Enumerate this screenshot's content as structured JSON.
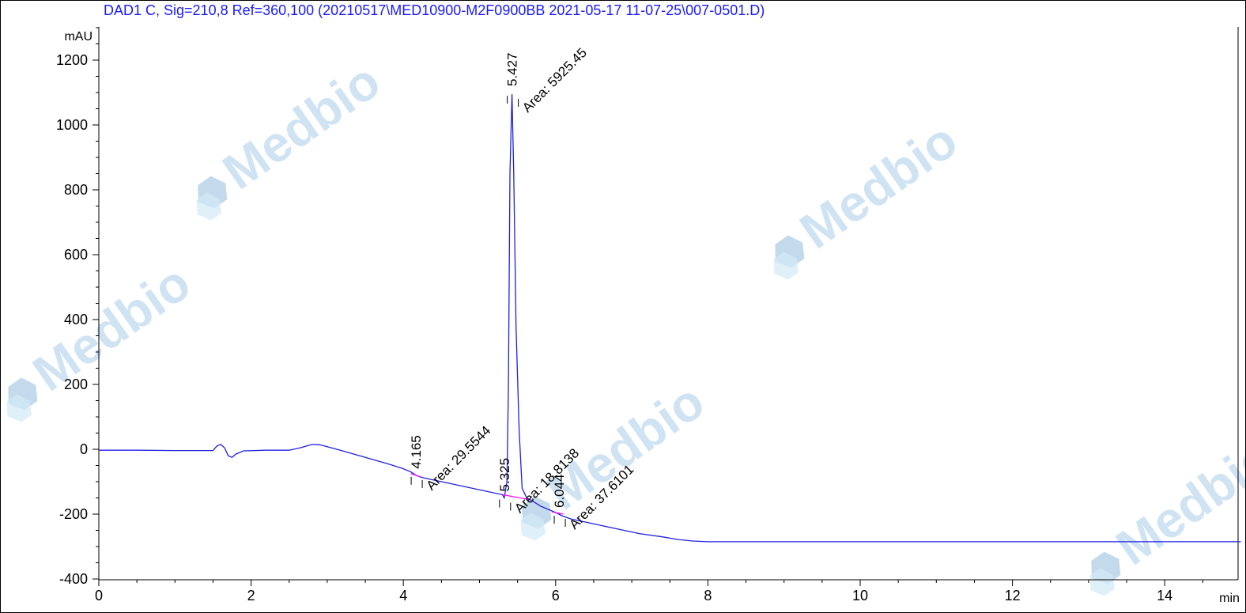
{
  "chart_data": {
    "type": "line",
    "title": "DAD1 C, Sig=210,8 Ref=360,100 (20210517\\MED10900-M2F0900BB  2021-05-17 11-07-25\\007-0501.D)",
    "xlabel": "min",
    "ylabel": "mAU",
    "xlim": [
      0,
      15
    ],
    "ylim": [
      -400,
      1300
    ],
    "x_ticks": [
      0,
      2,
      4,
      6,
      8,
      10,
      12,
      14
    ],
    "y_ticks": [
      -400,
      -200,
      0,
      200,
      400,
      600,
      800,
      1000,
      1200
    ],
    "grid": false,
    "series": [
      {
        "color": "#2020e0",
        "x": [
          0,
          0.5,
          1.0,
          1.5,
          1.55,
          1.6,
          1.65,
          1.7,
          1.75,
          1.8,
          1.9,
          2.2,
          2.5,
          2.65,
          2.8,
          2.9,
          3.0,
          3.2,
          3.5,
          3.8,
          4.0,
          4.1,
          4.165,
          4.22,
          4.3,
          4.6,
          5.0,
          5.3,
          5.325,
          5.36,
          5.38,
          5.4,
          5.427,
          5.45,
          5.48,
          5.52,
          5.56,
          5.62,
          5.7,
          5.8,
          5.9,
          6.0,
          6.044,
          6.08,
          6.2,
          6.5,
          6.8,
          7.1,
          7.4,
          7.6,
          7.8,
          8.0,
          9.0,
          10.0,
          11.0,
          12.0,
          13.0,
          14.0,
          15.0
        ],
        "y": [
          -3,
          -3,
          -4,
          -4,
          10,
          15,
          5,
          -20,
          -25,
          -15,
          -5,
          -3,
          -3,
          5,
          15,
          14,
          8,
          -5,
          -25,
          -45,
          -60,
          -70,
          -80,
          -85,
          -90,
          -105,
          -125,
          -140,
          -150,
          -100,
          200,
          850,
          1095,
          850,
          380,
          60,
          -120,
          -150,
          -160,
          -175,
          -185,
          -195,
          -200,
          -205,
          -215,
          -230,
          -245,
          -260,
          -270,
          -278,
          -283,
          -285,
          -285,
          -285,
          -285,
          -285,
          -285,
          -285,
          -285
        ]
      }
    ],
    "baseline_segments": [
      {
        "color": "#ff00ff",
        "x": [
          4.1,
          4.22
        ],
        "y": [
          -75,
          -85
        ]
      },
      {
        "color": "#ff00ff",
        "x": [
          5.3,
          5.65
        ],
        "y": [
          -140,
          -155
        ]
      },
      {
        "color": "#ff00ff",
        "x": [
          5.95,
          6.1
        ],
        "y": [
          -193,
          -200
        ]
      }
    ],
    "peaks": [
      {
        "rt": 4.165,
        "rt_label": "4.165",
        "area_label": "Area: 29.5544",
        "y": -80
      },
      {
        "rt": 5.325,
        "rt_label": "5.325",
        "area_label": "Area: 18.8138",
        "y": -150
      },
      {
        "rt": 5.427,
        "rt_label": "5.427",
        "area_label": "Area: 5925.45",
        "y": 1095
      },
      {
        "rt": 6.044,
        "rt_label": "6.044",
        "area_label": "Area: 37.6101",
        "y": -200
      }
    ]
  },
  "watermarks": [
    {
      "text": "Medbio"
    },
    {
      "text": "Medbio"
    },
    {
      "text": "Medbio"
    },
    {
      "text": "Medbio"
    },
    {
      "text": "Medbio"
    }
  ]
}
